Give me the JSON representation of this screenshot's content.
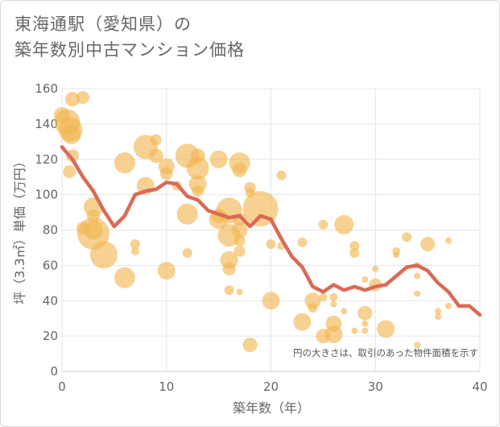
{
  "title_line1": "東海通駅（愛知県）の",
  "title_line2": "築年数別中古マンション価格",
  "chart_data": {
    "type": "scatter",
    "xlabel": "築年数（年）",
    "ylabel": "坪（3.3㎡）単価（万円）",
    "xlim": [
      0,
      40
    ],
    "ylim": [
      0,
      160
    ],
    "xticks": [
      "0",
      "10",
      "20",
      "30",
      "40"
    ],
    "yticks": [
      "0",
      "20",
      "40",
      "60",
      "80",
      "100",
      "120",
      "140",
      "160"
    ],
    "grid": true,
    "note": "円の大きさは、取引のあった物件面積を示す",
    "bubble_color": "#f2b54d",
    "line_color": "#d96a56",
    "points": [
      {
        "x": 0.0,
        "y": 145,
        "r": 10
      },
      {
        "x": 0.5,
        "y": 141,
        "r": 16
      },
      {
        "x": 0.8,
        "y": 137,
        "r": 15
      },
      {
        "x": 0.9,
        "y": 134,
        "r": 12
      },
      {
        "x": 1.0,
        "y": 154,
        "r": 9
      },
      {
        "x": 0.7,
        "y": 113,
        "r": 8
      },
      {
        "x": 1.0,
        "y": 122,
        "r": 8
      },
      {
        "x": 2.0,
        "y": 155,
        "r": 8
      },
      {
        "x": 3.0,
        "y": 93,
        "r": 12
      },
      {
        "x": 3.0,
        "y": 88,
        "r": 8
      },
      {
        "x": 3.0,
        "y": 80,
        "r": 12
      },
      {
        "x": 2.0,
        "y": 81,
        "r": 8
      },
      {
        "x": 3.0,
        "y": 78,
        "r": 20
      },
      {
        "x": 4.0,
        "y": 66,
        "r": 17
      },
      {
        "x": 6.0,
        "y": 118,
        "r": 13
      },
      {
        "x": 6.0,
        "y": 53,
        "r": 13
      },
      {
        "x": 7.0,
        "y": 72,
        "r": 6
      },
      {
        "x": 7.0,
        "y": 68,
        "r": 5
      },
      {
        "x": 8.0,
        "y": 127,
        "r": 15
      },
      {
        "x": 8.0,
        "y": 105,
        "r": 11
      },
      {
        "x": 9.0,
        "y": 131,
        "r": 7
      },
      {
        "x": 9.0,
        "y": 122,
        "r": 9
      },
      {
        "x": 10.0,
        "y": 116,
        "r": 10
      },
      {
        "x": 10.0,
        "y": 112,
        "r": 8
      },
      {
        "x": 10.0,
        "y": 57,
        "r": 11
      },
      {
        "x": 11.0,
        "y": 105,
        "r": 6
      },
      {
        "x": 12.0,
        "y": 122,
        "r": 15
      },
      {
        "x": 12.0,
        "y": 89,
        "r": 13
      },
      {
        "x": 12.0,
        "y": 67,
        "r": 6
      },
      {
        "x": 13.0,
        "y": 122,
        "r": 9
      },
      {
        "x": 13.0,
        "y": 115,
        "r": 14
      },
      {
        "x": 13.0,
        "y": 106,
        "r": 11
      },
      {
        "x": 13.0,
        "y": 102,
        "r": 7
      },
      {
        "x": 15.0,
        "y": 120,
        "r": 11
      },
      {
        "x": 15.0,
        "y": 88,
        "r": 9
      },
      {
        "x": 15.0,
        "y": 86,
        "r": 12
      },
      {
        "x": 16.0,
        "y": 91,
        "r": 16
      },
      {
        "x": 16.0,
        "y": 77,
        "r": 14
      },
      {
        "x": 16.0,
        "y": 63,
        "r": 11
      },
      {
        "x": 16.0,
        "y": 58,
        "r": 8
      },
      {
        "x": 16.0,
        "y": 46,
        "r": 6
      },
      {
        "x": 17.0,
        "y": 118,
        "r": 13
      },
      {
        "x": 17.0,
        "y": 114,
        "r": 9
      },
      {
        "x": 17.0,
        "y": 86,
        "r": 8
      },
      {
        "x": 17.0,
        "y": 80,
        "r": 10
      },
      {
        "x": 17.0,
        "y": 74,
        "r": 7
      },
      {
        "x": 17.0,
        "y": 68,
        "r": 7
      },
      {
        "x": 17.0,
        "y": 45,
        "r": 4
      },
      {
        "x": 18.0,
        "y": 104,
        "r": 7
      },
      {
        "x": 18.0,
        "y": 101,
        "r": 6
      },
      {
        "x": 18.0,
        "y": 15,
        "r": 9
      },
      {
        "x": 19.0,
        "y": 92,
        "r": 22
      },
      {
        "x": 20.0,
        "y": 72,
        "r": 6
      },
      {
        "x": 20.0,
        "y": 40,
        "r": 11
      },
      {
        "x": 21.0,
        "y": 111,
        "r": 6
      },
      {
        "x": 21.0,
        "y": 71,
        "r": 5
      },
      {
        "x": 23.0,
        "y": 73,
        "r": 6
      },
      {
        "x": 23.0,
        "y": 28,
        "r": 11
      },
      {
        "x": 24.0,
        "y": 40,
        "r": 10
      },
      {
        "x": 24.0,
        "y": 36,
        "r": 6
      },
      {
        "x": 25.0,
        "y": 83,
        "r": 6
      },
      {
        "x": 25.0,
        "y": 42,
        "r": 5
      },
      {
        "x": 25.0,
        "y": 20,
        "r": 9
      },
      {
        "x": 26.0,
        "y": 27,
        "r": 10
      },
      {
        "x": 26.0,
        "y": 21,
        "r": 11
      },
      {
        "x": 26.0,
        "y": 42,
        "r": 5
      },
      {
        "x": 26.0,
        "y": 38,
        "r": 4
      },
      {
        "x": 27.0,
        "y": 83,
        "r": 12
      },
      {
        "x": 27.0,
        "y": 34,
        "r": 4
      },
      {
        "x": 28.0,
        "y": 71,
        "r": 6
      },
      {
        "x": 28.0,
        "y": 67,
        "r": 6
      },
      {
        "x": 28.0,
        "y": 23,
        "r": 4
      },
      {
        "x": 29.0,
        "y": 52,
        "r": 4
      },
      {
        "x": 29.0,
        "y": 33,
        "r": 9
      },
      {
        "x": 29.0,
        "y": 27,
        "r": 4
      },
      {
        "x": 29.0,
        "y": 23,
        "r": 4
      },
      {
        "x": 30.0,
        "y": 58,
        "r": 4
      },
      {
        "x": 30.0,
        "y": 49,
        "r": 8
      },
      {
        "x": 31.0,
        "y": 24,
        "r": 11
      },
      {
        "x": 32.0,
        "y": 68,
        "r": 5
      },
      {
        "x": 32.0,
        "y": 66,
        "r": 4
      },
      {
        "x": 33.0,
        "y": 76,
        "r": 6
      },
      {
        "x": 34.0,
        "y": 60,
        "r": 4
      },
      {
        "x": 34.0,
        "y": 54,
        "r": 4
      },
      {
        "x": 34.0,
        "y": 44,
        "r": 4
      },
      {
        "x": 34.0,
        "y": 15,
        "r": 4
      },
      {
        "x": 35.0,
        "y": 72,
        "r": 9
      },
      {
        "x": 36.0,
        "y": 34,
        "r": 4
      },
      {
        "x": 36.0,
        "y": 31,
        "r": 4
      },
      {
        "x": 37.0,
        "y": 74,
        "r": 4
      },
      {
        "x": 37.0,
        "y": 37,
        "r": 4
      }
    ],
    "trend": [
      [
        0,
        127
      ],
      [
        1,
        120
      ],
      [
        2,
        110
      ],
      [
        3,
        102
      ],
      [
        4,
        91
      ],
      [
        5,
        82
      ],
      [
        6,
        88
      ],
      [
        7,
        100
      ],
      [
        8,
        102
      ],
      [
        9,
        103
      ],
      [
        10,
        107
      ],
      [
        11,
        106
      ],
      [
        12,
        99
      ],
      [
        13,
        97
      ],
      [
        14,
        91
      ],
      [
        15,
        89
      ],
      [
        16,
        87
      ],
      [
        17,
        88
      ],
      [
        18,
        82
      ],
      [
        19,
        88
      ],
      [
        20,
        86
      ],
      [
        21,
        75
      ],
      [
        22,
        65
      ],
      [
        23,
        59
      ],
      [
        24,
        48
      ],
      [
        25,
        45
      ],
      [
        26,
        49
      ],
      [
        27,
        46
      ],
      [
        28,
        48
      ],
      [
        29,
        46
      ],
      [
        30,
        48
      ],
      [
        31,
        49
      ],
      [
        32,
        54
      ],
      [
        33,
        59
      ],
      [
        34,
        60
      ],
      [
        35,
        57
      ],
      [
        36,
        50
      ],
      [
        37,
        45
      ],
      [
        38,
        37
      ],
      [
        39,
        37
      ],
      [
        40,
        32
      ]
    ]
  }
}
